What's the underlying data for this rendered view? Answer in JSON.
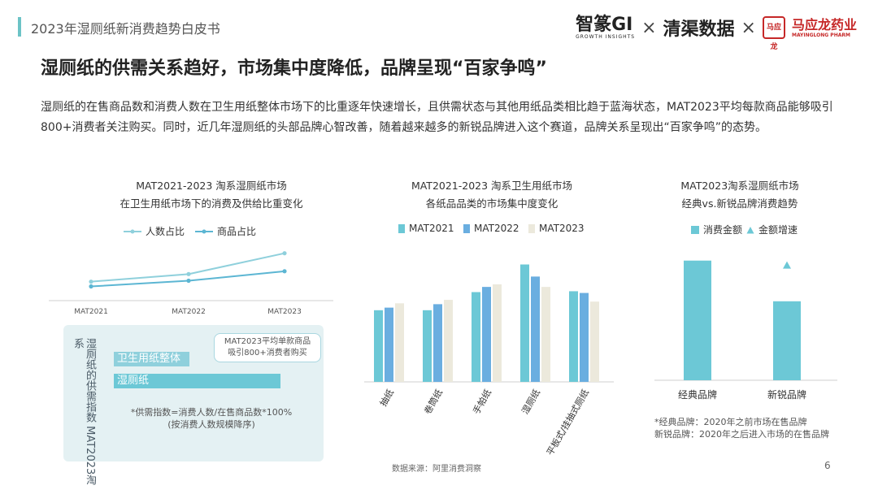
{
  "header": {
    "title": "2023年湿厕纸新消费趋势白皮书"
  },
  "logos": {
    "zhizhuan_name": "智篆GI",
    "zhizhuan_sub": "GROWTH INSIGHTS",
    "cross": "×",
    "qingqu": "清渠数据",
    "mayinglong_badge": "马应龙",
    "mayinglong_name": "马应龙药业",
    "mayinglong_sub": "MAYINGLONG PHARM"
  },
  "main_title": "湿厕纸的供需关系趋好，市场集中度降低，品牌呈现“百家争鸣”",
  "body_text": "湿厕纸的在售商品数和消费人数在卫生用纸整体市场下的比重逐年快速增长，且供需状态与其他用纸品类相比趋于蓝海状态，MAT2023平均每款商品能够吸引800+消费者关注购买。同时，近几年湿厕纸的头部品牌心智改善，随着越来越多的新锐品牌进入这个赛道，品牌关系呈现出“百家争鸣”的态势。",
  "chart1": {
    "title_line1": "MAT2021-2023 淘系湿厕纸市场",
    "title_line2": "在卫生用纸市场下的消费及供给比重变化",
    "legend": [
      "人数占比",
      "商品占比"
    ]
  },
  "supply_panel": {
    "vertical_label": "湿厕纸的供需指数",
    "vertical_label2": "MAT2023淘系",
    "bar1_label": "卫生用纸整体",
    "bar2_label": "湿厕纸",
    "callout_line1": "MAT2023平均单款商品",
    "callout_line2": "吸引800+消费者购买",
    "note_line1": "*供需指数=消费人数/在售商品数*100%",
    "note_line2": "(按消费人数规模降序)"
  },
  "chart2": {
    "title_line1": "MAT2021-2023 淘系卫生用纸市场",
    "title_line2": "各纸品品类的市场集中度变化"
  },
  "chart3": {
    "title_line1": "MAT2023淘系湿厕纸市场",
    "title_line2": "经典vs.新锐品牌消费趋势",
    "legend": [
      "消费金额",
      "金额增速"
    ],
    "note_line1": "*经典品牌：2020年之前市场在售品牌",
    "note_line2": "新锐品牌：2020年之后进入市场的在售品牌"
  },
  "footer": {
    "source": "数据来源：阿里消费洞察",
    "page": "6"
  },
  "colors": {
    "accent": "#6cc3c6",
    "line_people": "#8fd0dc",
    "line_goods": "#5cb6d3",
    "bar2021": "#6cc8d6",
    "bar2022": "#6aaee0",
    "bar2023": "#ece9dc"
  },
  "chart_data": [
    {
      "type": "line",
      "x": [
        "MAT2021",
        "MAT2022",
        "MAT2023"
      ],
      "series": [
        {
          "name": "人数占比",
          "values": [
            1.0,
            1.4,
            2.5
          ]
        },
        {
          "name": "商品占比",
          "values": [
            0.75,
            1.05,
            1.55
          ]
        }
      ],
      "ylim": [
        0,
        3
      ],
      "grid": false,
      "legend": "top"
    },
    {
      "type": "bar",
      "categories": [
        "抽纸",
        "卷筒纸",
        "手帕纸",
        "湿厕纸",
        "平板式/挂抽式厕纸"
      ],
      "series": [
        {
          "name": "MAT2021",
          "values": [
            83,
            83,
            104,
            136,
            105
          ]
        },
        {
          "name": "MAT2022",
          "values": [
            86,
            90,
            110,
            122,
            103
          ]
        },
        {
          "name": "MAT2023",
          "values": [
            91,
            95,
            113,
            110,
            93
          ]
        }
      ],
      "ylim": [
        0,
        160
      ],
      "grid": false,
      "legend": "top"
    },
    {
      "type": "bar",
      "categories": [
        "经典品牌",
        "新锐品牌"
      ],
      "series": [
        {
          "name": "消费金额",
          "values": [
            100,
            66
          ]
        },
        {
          "name": "金额增速",
          "values": [
            null,
            96
          ]
        }
      ],
      "ylim": [
        0,
        110
      ],
      "grid": false,
      "legend": "top"
    }
  ]
}
